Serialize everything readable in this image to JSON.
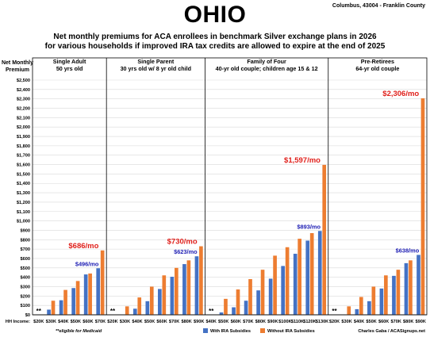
{
  "header": {
    "title": "OHIO",
    "location": "Columbus, 43004 - Franklin County",
    "subtitle_line1": "Net monthly premiums for ACA enrollees in benchmark Silver exchange plans in 2026",
    "subtitle_line2": "for various households if improved IRA tax credits are allowed to expire at the end of 2025"
  },
  "chart_data": {
    "type": "bar",
    "ylabel": "Net Monthly Premium",
    "ylim": [
      0,
      2500
    ],
    "yticks": [
      "$0",
      "$100",
      "$200",
      "$300",
      "$400",
      "$500",
      "$600",
      "$700",
      "$800",
      "$900",
      "$1,000",
      "$1,100",
      "$1,200",
      "$1,300",
      "$1,400",
      "$1,500",
      "$1,600",
      "$1,700",
      "$1,800",
      "$1,900",
      "$2,000",
      "$2,100",
      "$2,200",
      "$2,300",
      "$2,400",
      "$2,500"
    ],
    "xaxis_prefix": "HH Income:",
    "grid": true,
    "colors": {
      "with": "#4472c4",
      "without": "#ed7d31",
      "with_label": "#1f1fb4",
      "without_label": "#e0201b"
    },
    "legend": [
      "With IRA Subsidies",
      "Without IRA Subsidies"
    ],
    "medicaid_marker": "**",
    "panels": [
      {
        "title": "Single Adult",
        "subtitle": "50 yrs old",
        "categories": [
          "$20K",
          "$30K",
          "$40K",
          "$50K",
          "$60K",
          "$70K"
        ],
        "series": [
          {
            "name": "With IRA Subsidies",
            "values": [
              0,
              55,
              155,
              285,
              430,
              496
            ]
          },
          {
            "name": "Without IRA Subsidies",
            "values": [
              0,
              150,
              265,
              360,
              440,
              686
            ]
          }
        ],
        "medicaid": [
          true,
          false,
          false,
          false,
          false,
          false
        ],
        "annotations": {
          "with": "$496/mo",
          "without": "$686/mo"
        }
      },
      {
        "title": "Single Parent",
        "subtitle": "30 yrs old w/ 8 yr old child",
        "categories": [
          "$20K",
          "$30K",
          "$40K",
          "$50K",
          "$60K",
          "$70K",
          "$80K",
          "$90K"
        ],
        "series": [
          {
            "name": "With IRA Subsidies",
            "values": [
              0,
              0,
              65,
              145,
              275,
              405,
              540,
              623
            ]
          },
          {
            "name": "Without IRA Subsidies",
            "values": [
              0,
              90,
              185,
              300,
              420,
              500,
              580,
              730
            ]
          }
        ],
        "medicaid": [
          true,
          false,
          false,
          false,
          false,
          false,
          false,
          false
        ],
        "annotations": {
          "with": "$623/mo",
          "without": "$730/mo"
        }
      },
      {
        "title": "Family of Four",
        "subtitle": "40-yr old couple; children age 15 & 12",
        "categories": [
          "$40K",
          "$50K",
          "$60K",
          "$70K",
          "$80K",
          "$90K",
          "$100K",
          "$110K",
          "$120K",
          "$130K"
        ],
        "series": [
          {
            "name": "With IRA Subsidies",
            "values": [
              0,
              25,
              80,
              150,
              260,
              385,
              520,
              650,
              790,
              893
            ]
          },
          {
            "name": "Without IRA Subsidies",
            "values": [
              0,
              170,
              270,
              380,
              480,
              630,
              720,
              810,
              870,
              1597
            ]
          }
        ],
        "medicaid": [
          true,
          false,
          false,
          false,
          false,
          false,
          false,
          false,
          false,
          false
        ],
        "annotations": {
          "with": "$893/mo",
          "without": "$1,597/mo"
        }
      },
      {
        "title": "Pre-Retirees",
        "subtitle": "64-yr old couple",
        "categories": [
          "$20K",
          "$30K",
          "$40K",
          "$50K",
          "$60K",
          "$70K",
          "$80K",
          "$90K"
        ],
        "series": [
          {
            "name": "With IRA Subsidies",
            "values": [
              0,
              0,
              60,
              145,
              280,
              415,
              550,
              638
            ]
          },
          {
            "name": "Without IRA Subsidies",
            "values": [
              0,
              90,
              190,
              300,
              420,
              480,
              580,
              2306
            ]
          }
        ],
        "medicaid": [
          true,
          false,
          false,
          false,
          false,
          false,
          false,
          false
        ],
        "annotations": {
          "with": "$638/mo",
          "without": "$2,306/mo"
        }
      }
    ]
  },
  "footer": {
    "medicaid_note": "**eligible for Medicaid",
    "credit": "Charles Gaba / ACASignups.net"
  }
}
